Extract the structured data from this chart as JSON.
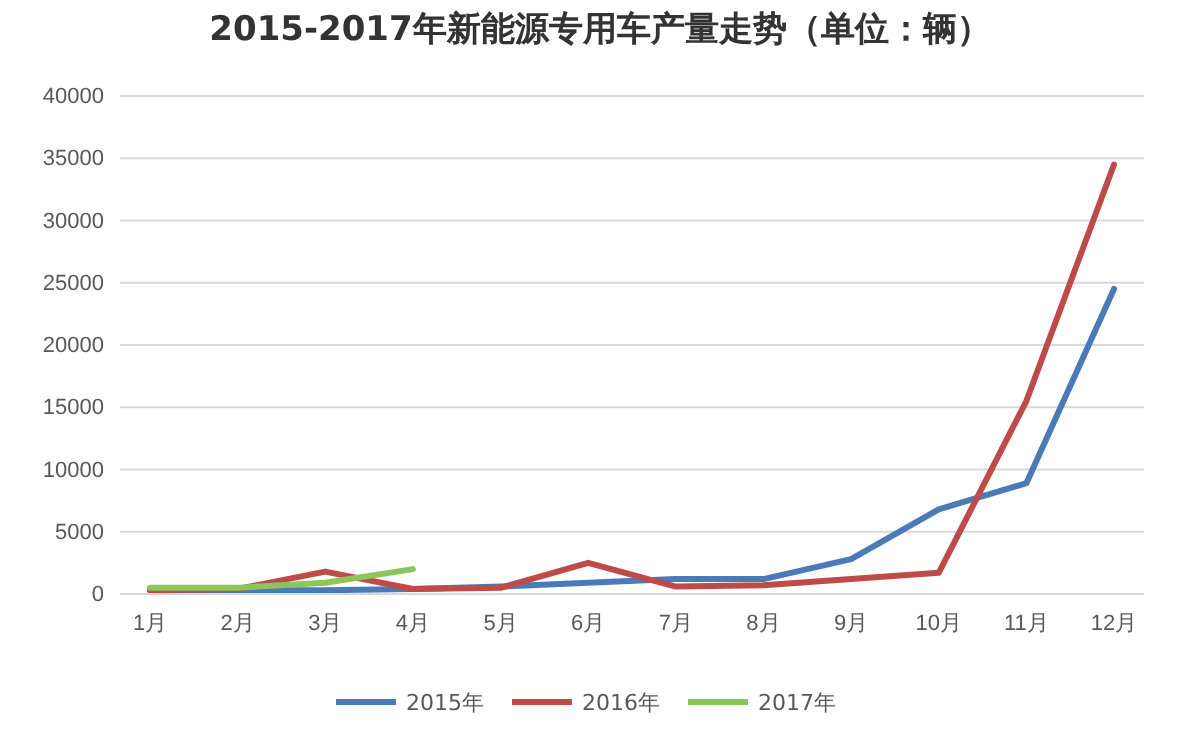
{
  "chart_data": {
    "type": "line",
    "title": "2015-2017年新能源专用车产量走势（单位：辆）",
    "categories": [
      "1月",
      "2月",
      "3月",
      "4月",
      "5月",
      "6月",
      "7月",
      "8月",
      "9月",
      "10月",
      "11月",
      "12月"
    ],
    "series": [
      {
        "name": "2015年",
        "color": "#4a7ab8",
        "values": [
          300,
          300,
          300,
          400,
          600,
          900,
          1200,
          1200,
          2800,
          6800,
          8900,
          24500
        ]
      },
      {
        "name": "2016年",
        "color": "#be4b48",
        "values": [
          300,
          400,
          1800,
          400,
          500,
          2500,
          600,
          700,
          1200,
          1700,
          15500,
          34500
        ]
      },
      {
        "name": "2017年",
        "color": "#8cc65a",
        "values": [
          500,
          500,
          900,
          2000,
          null,
          null,
          null,
          null,
          null,
          null,
          null,
          null
        ]
      }
    ],
    "ylim": [
      0,
      40000
    ],
    "yticks": [
      0,
      5000,
      10000,
      15000,
      20000,
      25000,
      30000,
      35000,
      40000
    ],
    "grid": "y",
    "legend": "bottom",
    "marker": "none",
    "line_style": "solid"
  }
}
